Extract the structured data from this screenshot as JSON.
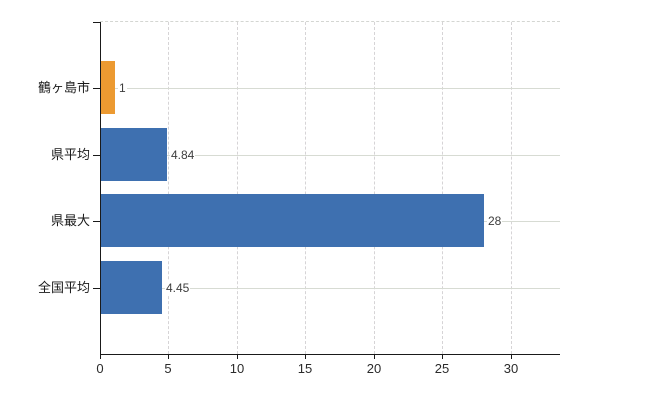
{
  "chart_data": {
    "type": "bar",
    "orientation": "horizontal",
    "title": "",
    "xlabel": "",
    "ylabel": "",
    "categories": [
      "鶴ヶ島市",
      "県平均",
      "県最大",
      "全国平均"
    ],
    "values": [
      1,
      4.84,
      28,
      4.45
    ],
    "value_labels": [
      "1",
      "4.84",
      "28",
      "4.45"
    ],
    "bar_colors": [
      "#ec9a31",
      "#3e70b0",
      "#3e70b0",
      "#3e70b0"
    ],
    "x_ticks": [
      0,
      5,
      10,
      15,
      20,
      25,
      30
    ],
    "x_tick_labels": [
      "0",
      "5",
      "10",
      "15",
      "20",
      "25",
      "30"
    ],
    "xlim": [
      0,
      33.6
    ],
    "grid": true,
    "legend": false,
    "colors": {
      "bar_default": "#3e70b0",
      "bar_highlight": "#ec9a31",
      "gridline": "#d7dbd3",
      "axis": "#1a1a1a",
      "value_label": "#3d3d3d",
      "tick_label": "#2b2b2b",
      "background": "#ffffff"
    }
  }
}
